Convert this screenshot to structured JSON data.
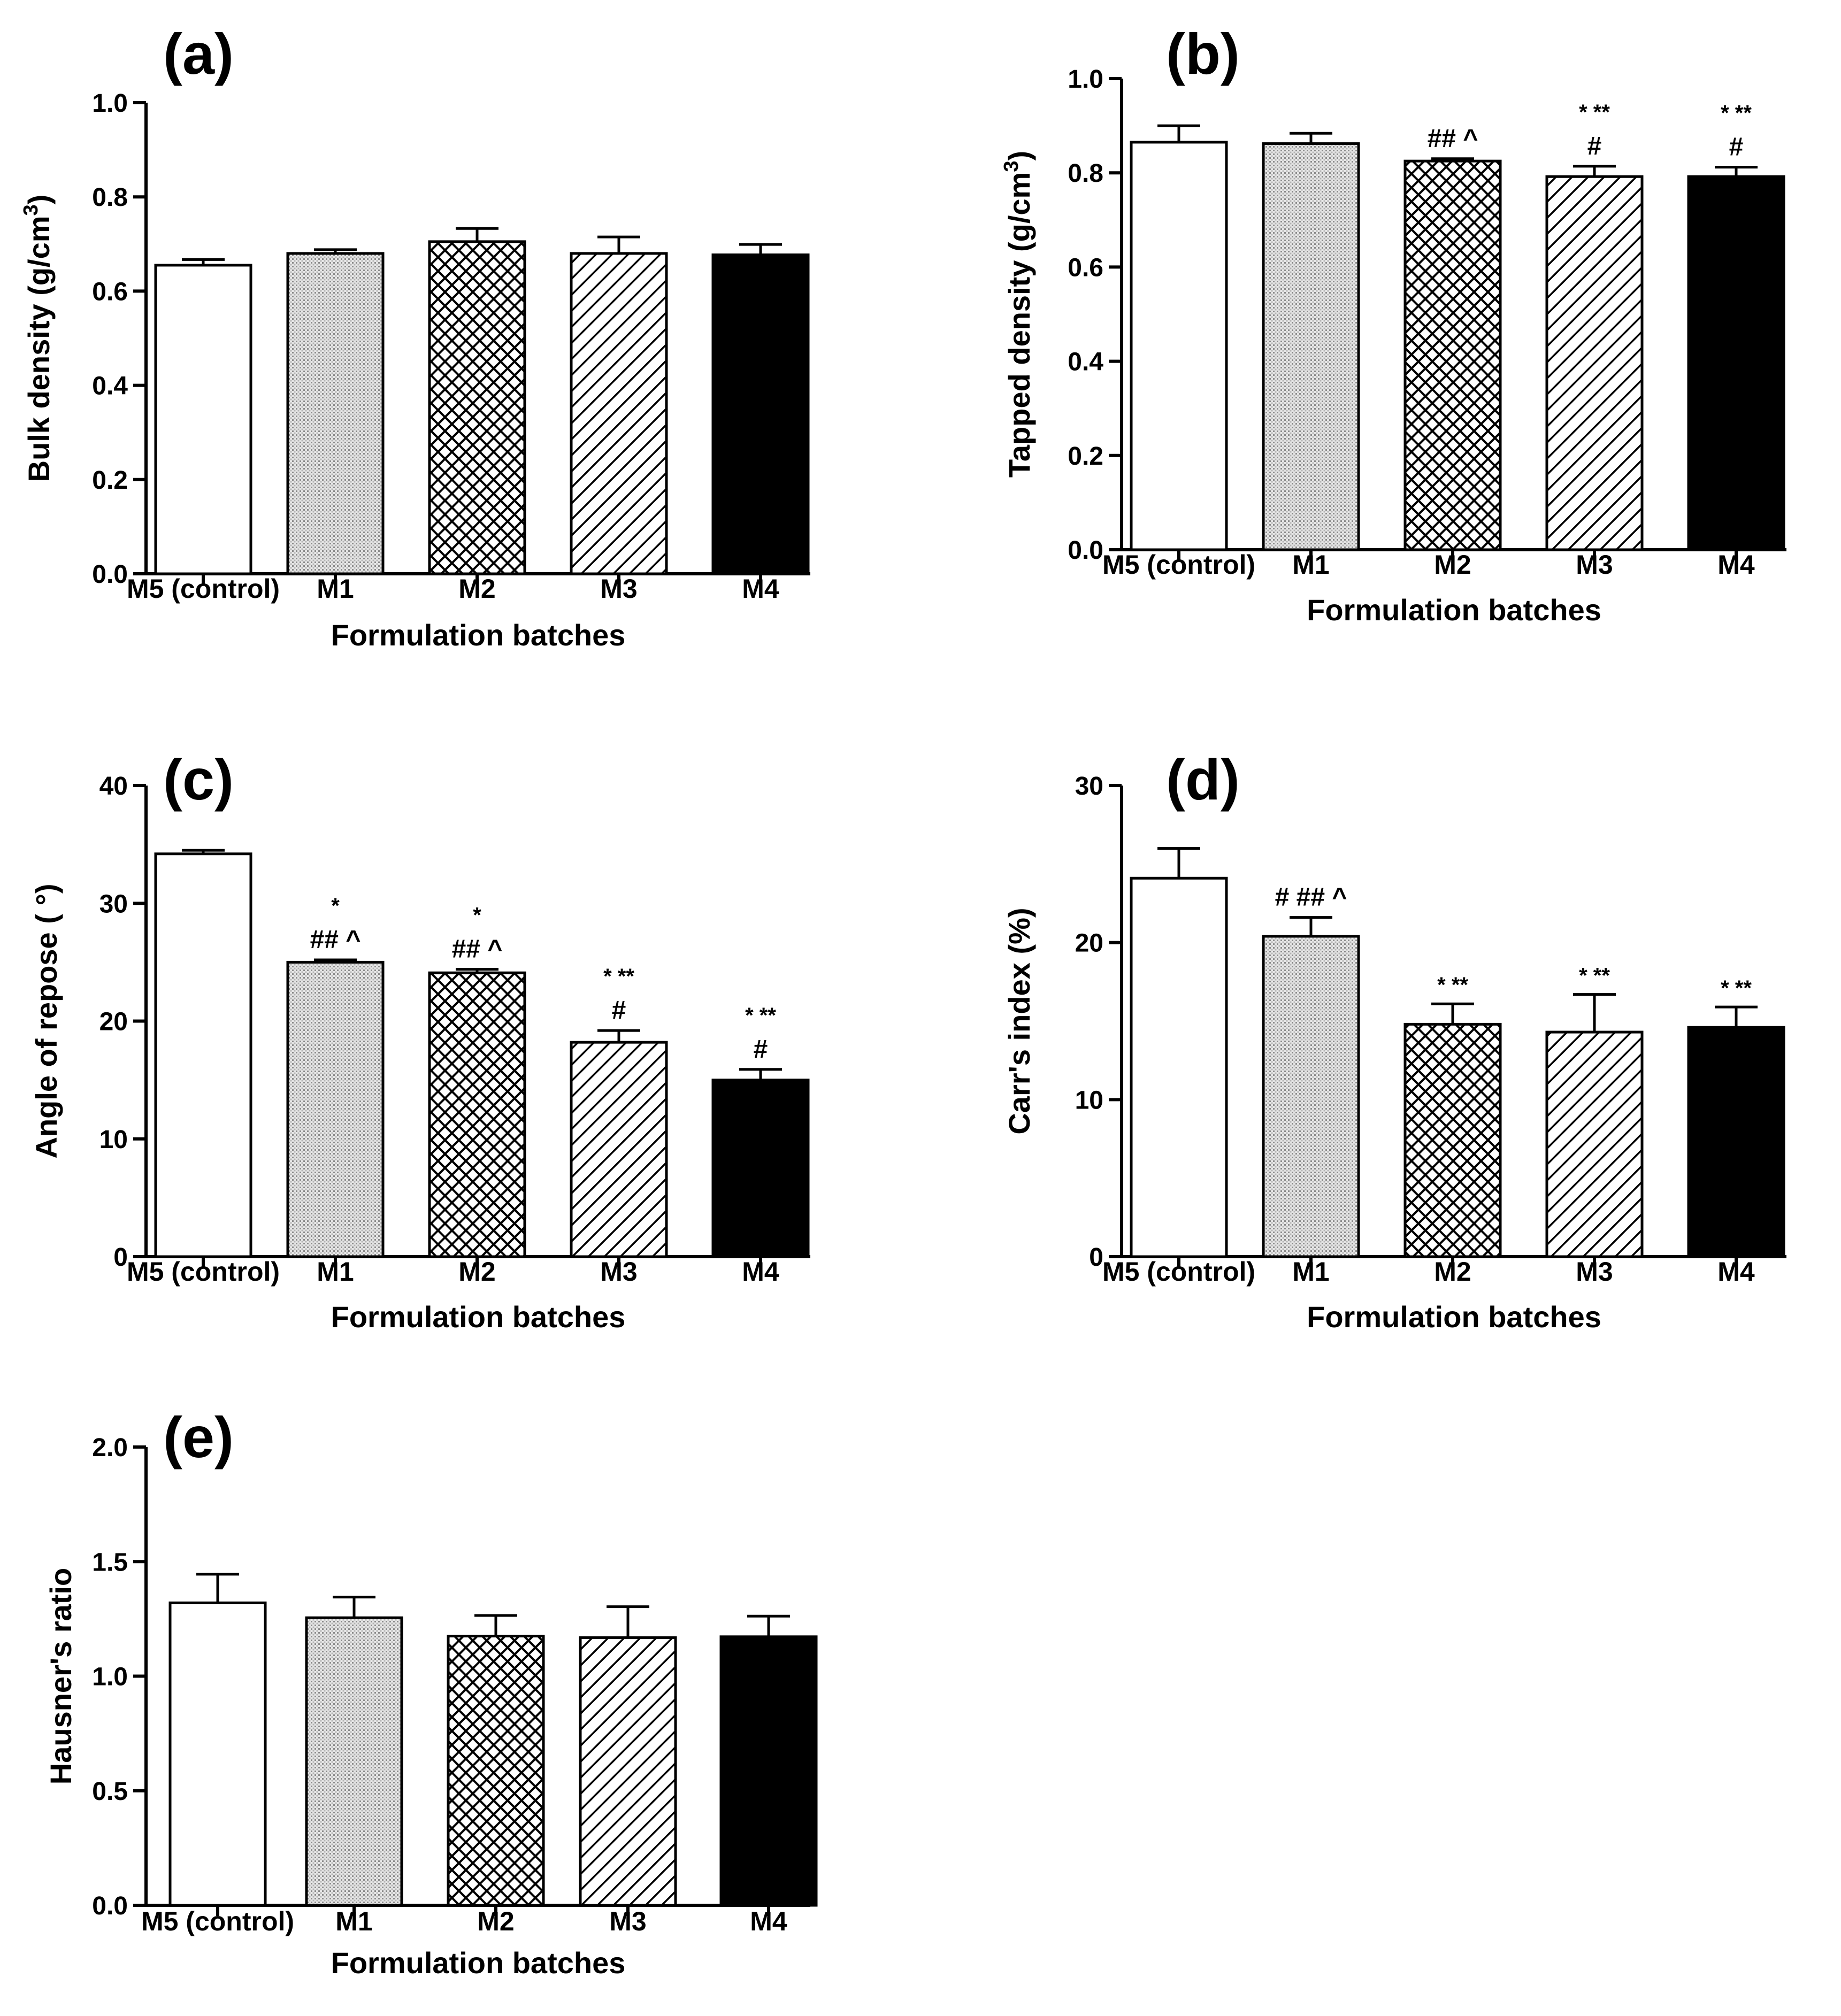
{
  "chart_data": [
    {
      "panel_label": "(a)",
      "type": "bar",
      "categories": [
        "M5 (control)",
        "M1",
        "M2",
        "M3",
        "M4"
      ],
      "values": [
        0.655,
        0.68,
        0.705,
        0.68,
        0.677
      ],
      "errors": [
        0.012,
        0.008,
        0.028,
        0.035,
        0.022
      ],
      "annotations": [
        [],
        [],
        [],
        [],
        []
      ],
      "ylabel": "Bulk density (g/cm",
      "ylabel_sup": "3",
      "ylabel_end": ")",
      "xlabel": "Formulation batches",
      "ylim": [
        0,
        1.0
      ],
      "yticks": [
        "0.0",
        "0.2",
        "0.4",
        "0.6",
        "0.8",
        "1.0"
      ]
    },
    {
      "panel_label": "(b)",
      "type": "bar",
      "categories": [
        "M5 (control)",
        "M1",
        "M2",
        "M3",
        "M4"
      ],
      "values": [
        0.865,
        0.862,
        0.825,
        0.792,
        0.792
      ],
      "errors": [
        0.035,
        0.022,
        0.005,
        0.022,
        0.02
      ],
      "annotations": [
        [],
        [],
        [
          "## ^"
        ],
        [
          "* **",
          "#"
        ],
        [
          "* **",
          "#"
        ]
      ],
      "ylabel": "Tapped density (g/cm",
      "ylabel_sup": "3",
      "ylabel_end": ")",
      "xlabel": "Formulation batches",
      "ylim": [
        0,
        1.0
      ],
      "yticks": [
        "0.0",
        "0.2",
        "0.4",
        "0.6",
        "0.8",
        "1.0"
      ]
    },
    {
      "panel_label": "(c)",
      "type": "bar",
      "categories": [
        "M5 (control)",
        "M1",
        "M2",
        "M3",
        "M4"
      ],
      "values": [
        34.2,
        25.0,
        24.1,
        18.2,
        15.0
      ],
      "errors": [
        0.3,
        0.2,
        0.3,
        1.0,
        0.9
      ],
      "annotations": [
        [],
        [
          "*",
          "## ^"
        ],
        [
          "*",
          "## ^"
        ],
        [
          "* **",
          "#"
        ],
        [
          "* **",
          "#"
        ]
      ],
      "ylabel": "Angle of repose ( °)",
      "ylabel_sup": "",
      "ylabel_end": "",
      "xlabel": "Formulation batches",
      "ylim": [
        0,
        40
      ],
      "yticks": [
        "0",
        "10",
        "20",
        "30",
        "40"
      ]
    },
    {
      "panel_label": "(d)",
      "type": "bar",
      "categories": [
        "M5 (control)",
        "M1",
        "M2",
        "M3",
        "M4"
      ],
      "values": [
        24.1,
        20.4,
        14.8,
        14.3,
        14.6
      ],
      "errors": [
        1.9,
        1.2,
        1.3,
        2.4,
        1.3
      ],
      "annotations": [
        [],
        [
          "# ## ^"
        ],
        [
          "* **"
        ],
        [
          "* **"
        ],
        [
          "* **"
        ]
      ],
      "ylabel": "Carr's index (%)",
      "ylabel_sup": "",
      "ylabel_end": "",
      "xlabel": "Formulation batches",
      "ylim": [
        0,
        30
      ],
      "yticks": [
        "0",
        "10",
        "20",
        "30"
      ]
    },
    {
      "panel_label": "(e)",
      "type": "bar",
      "categories": [
        "M5 (control)",
        "M1",
        "M2",
        "M3",
        "M4"
      ],
      "values": [
        1.32,
        1.255,
        1.175,
        1.168,
        1.172
      ],
      "errors": [
        0.125,
        0.09,
        0.09,
        0.135,
        0.09
      ],
      "annotations": [
        [],
        [],
        [],
        [],
        []
      ],
      "ylabel": "Hausner's ratio",
      "ylabel_sup": "",
      "ylabel_end": "",
      "xlabel": "Formulation batches",
      "ylim": [
        0,
        2.0
      ],
      "yticks": [
        "0.0",
        "0.5",
        "1.0",
        "1.5",
        "2.0"
      ]
    }
  ]
}
